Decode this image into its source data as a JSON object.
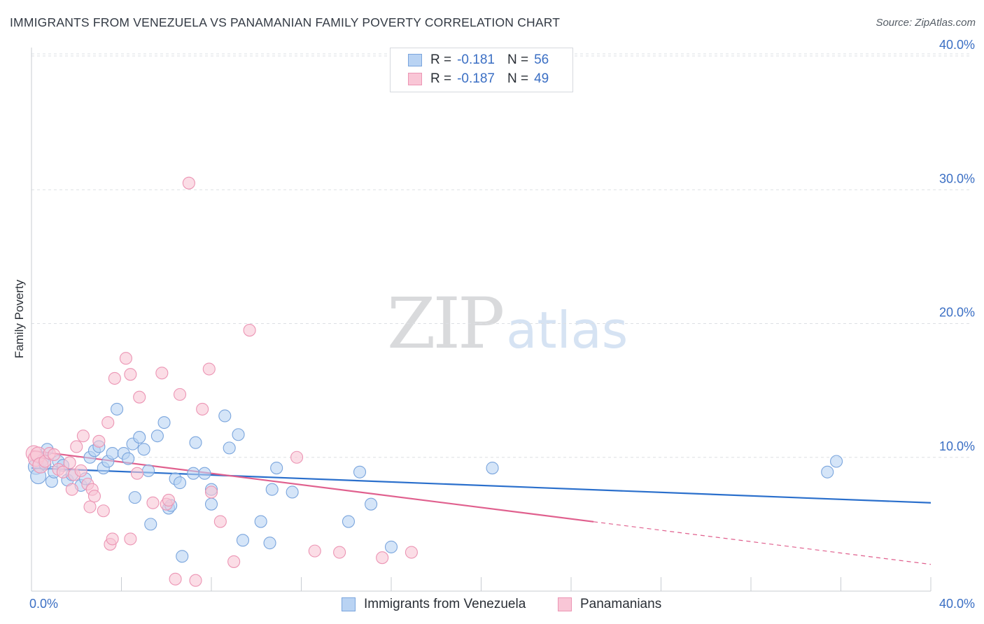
{
  "header": {
    "title": "IMMIGRANTS FROM VENEZUELA VS PANAMANIAN FAMILY POVERTY CORRELATION CHART",
    "source": "Source: ZipAtlas.com"
  },
  "watermark": {
    "zip": "ZIP",
    "atlas": "atlas"
  },
  "legend": {
    "r_label": "R =",
    "n_label": "N =",
    "series": [
      {
        "r_value": "-0.181",
        "n_value": "56"
      },
      {
        "r_value": "-0.187",
        "n_value": "49"
      }
    ]
  },
  "colors": {
    "blue_fill": "#b9d3f3",
    "blue_stroke": "#7aa5dd",
    "blue_line": "#2a6fcc",
    "pink_fill": "#f9c6d6",
    "pink_stroke": "#ec95b4",
    "pink_line": "#e0608e",
    "tick_text": "#3b6fc4",
    "grid": "#dde0e4"
  },
  "chart_data": {
    "type": "scatter",
    "title": "IMMIGRANTS FROM VENEZUELA VS PANAMANIAN FAMILY POVERTY CORRELATION CHART",
    "xlabel": "",
    "ylabel": "Family Poverty",
    "xlim": [
      0,
      40
    ],
    "ylim": [
      0,
      40
    ],
    "x_tick_labels": [
      "0.0%",
      "40.0%"
    ],
    "y_ticks": [
      10,
      20,
      30,
      40
    ],
    "y_tick_labels": [
      "10.0%",
      "20.0%",
      "30.0%",
      "40.0%"
    ],
    "series": [
      {
        "name": "Immigrants from Venezuela",
        "color": "#7aa5dd",
        "trend": {
          "x": [
            0,
            40
          ],
          "y": [
            9.2,
            6.6
          ],
          "dashed_from": null
        },
        "points": [
          [
            0.2,
            9.3
          ],
          [
            0.3,
            8.6
          ],
          [
            0.5,
            9.8
          ],
          [
            0.6,
            9.5
          ],
          [
            0.7,
            10.6
          ],
          [
            0.9,
            8.2
          ],
          [
            1.0,
            8.9
          ],
          [
            1.2,
            9.7
          ],
          [
            1.4,
            9.4
          ],
          [
            1.6,
            8.3
          ],
          [
            1.8,
            8.7
          ],
          [
            2.2,
            7.9
          ],
          [
            2.4,
            8.4
          ],
          [
            2.6,
            10.0
          ],
          [
            2.8,
            10.5
          ],
          [
            3.0,
            10.8
          ],
          [
            3.2,
            9.2
          ],
          [
            3.4,
            9.7
          ],
          [
            3.6,
            10.3
          ],
          [
            3.8,
            13.6
          ],
          [
            4.1,
            10.3
          ],
          [
            4.3,
            9.9
          ],
          [
            4.5,
            11.0
          ],
          [
            4.6,
            7.0
          ],
          [
            4.8,
            11.5
          ],
          [
            5.0,
            10.6
          ],
          [
            5.2,
            9.0
          ],
          [
            5.3,
            5.0
          ],
          [
            5.6,
            11.6
          ],
          [
            5.9,
            12.6
          ],
          [
            6.1,
            6.2
          ],
          [
            6.2,
            6.4
          ],
          [
            6.4,
            8.4
          ],
          [
            6.6,
            8.1
          ],
          [
            6.7,
            2.6
          ],
          [
            7.2,
            8.8
          ],
          [
            7.3,
            11.1
          ],
          [
            7.7,
            8.8
          ],
          [
            8.0,
            7.6
          ],
          [
            8.0,
            6.5
          ],
          [
            8.6,
            13.1
          ],
          [
            8.8,
            10.7
          ],
          [
            9.2,
            11.7
          ],
          [
            9.4,
            3.8
          ],
          [
            10.2,
            5.2
          ],
          [
            10.6,
            3.6
          ],
          [
            10.7,
            7.6
          ],
          [
            10.9,
            9.2
          ],
          [
            11.6,
            7.4
          ],
          [
            14.1,
            5.2
          ],
          [
            14.6,
            8.9
          ],
          [
            15.1,
            6.5
          ],
          [
            16.0,
            3.3
          ],
          [
            20.5,
            9.2
          ],
          [
            35.4,
            8.9
          ],
          [
            35.8,
            9.7
          ]
        ]
      },
      {
        "name": "Panamanians",
        "color": "#ec95b4",
        "trend": {
          "x": [
            0,
            40
          ],
          "y": [
            10.5,
            2.0
          ],
          "dashed_from": 25.0
        },
        "points": [
          [
            0.1,
            10.3
          ],
          [
            0.2,
            9.9
          ],
          [
            0.3,
            10.2
          ],
          [
            0.4,
            9.4
          ],
          [
            0.6,
            9.7
          ],
          [
            0.8,
            10.3
          ],
          [
            1.0,
            10.2
          ],
          [
            1.2,
            9.1
          ],
          [
            1.4,
            8.9
          ],
          [
            1.7,
            9.6
          ],
          [
            1.8,
            7.6
          ],
          [
            1.9,
            8.7
          ],
          [
            2.0,
            10.8
          ],
          [
            2.2,
            9.0
          ],
          [
            2.3,
            11.6
          ],
          [
            2.5,
            8.0
          ],
          [
            2.6,
            6.3
          ],
          [
            2.7,
            7.6
          ],
          [
            2.8,
            7.1
          ],
          [
            3.0,
            11.2
          ],
          [
            3.2,
            6.0
          ],
          [
            3.4,
            12.6
          ],
          [
            3.5,
            3.5
          ],
          [
            3.6,
            3.9
          ],
          [
            3.7,
            15.9
          ],
          [
            4.2,
            17.4
          ],
          [
            4.4,
            16.2
          ],
          [
            4.4,
            3.9
          ],
          [
            4.7,
            8.8
          ],
          [
            4.8,
            14.5
          ],
          [
            5.4,
            6.6
          ],
          [
            5.8,
            16.3
          ],
          [
            6.0,
            6.5
          ],
          [
            6.1,
            6.8
          ],
          [
            6.4,
            0.9
          ],
          [
            6.6,
            14.7
          ],
          [
            7.0,
            30.5
          ],
          [
            7.3,
            0.8
          ],
          [
            7.6,
            13.6
          ],
          [
            7.9,
            16.6
          ],
          [
            8.0,
            7.4
          ],
          [
            8.4,
            5.2
          ],
          [
            9.0,
            2.2
          ],
          [
            9.7,
            19.5
          ],
          [
            11.8,
            10.0
          ],
          [
            12.6,
            3.0
          ],
          [
            13.7,
            2.9
          ],
          [
            15.6,
            2.5
          ],
          [
            16.9,
            2.9
          ]
        ]
      }
    ]
  },
  "bottom_legend": {
    "items": [
      {
        "label": "Immigrants from Venezuela"
      },
      {
        "label": "Panamanians"
      }
    ]
  }
}
